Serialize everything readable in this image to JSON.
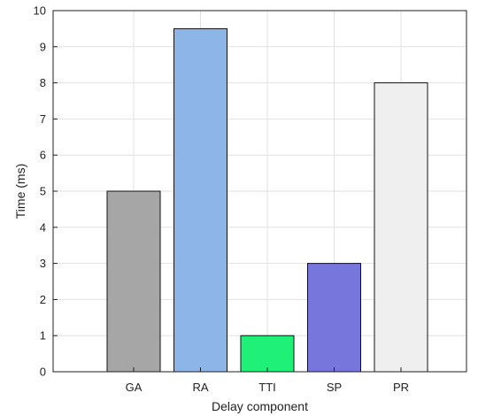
{
  "chart_data": {
    "type": "bar",
    "title": "",
    "xlabel": "Delay component",
    "ylabel": "Time (ms)",
    "categories": [
      "GA",
      "RA",
      "TTI",
      "SP",
      "PR"
    ],
    "values": [
      5,
      9.5,
      1,
      3,
      8
    ],
    "bar_colors": [
      "#a6a6a6",
      "#8db5e8",
      "#1ef078",
      "#7676dc",
      "#efefef"
    ],
    "ylim": [
      0,
      10
    ],
    "yticks": [
      0,
      1,
      2,
      3,
      4,
      5,
      6,
      7,
      8,
      9,
      10
    ],
    "grid": true,
    "legend": "none"
  }
}
